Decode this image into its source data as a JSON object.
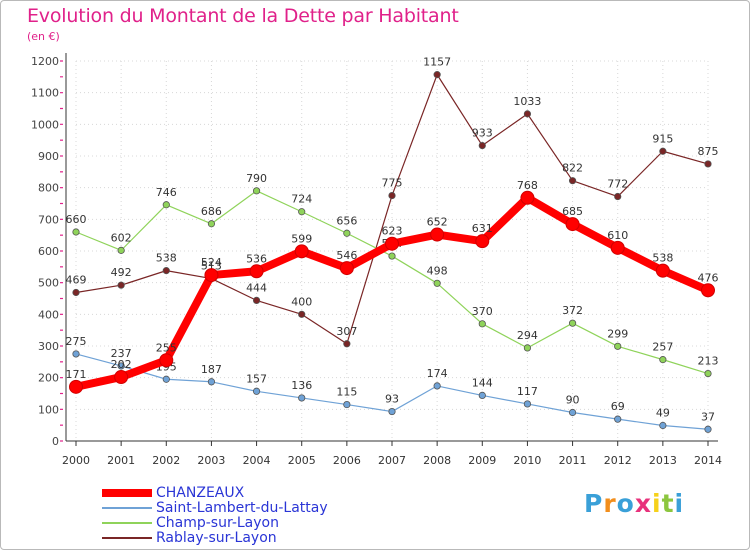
{
  "title": "Evolution du Montant de la Dette par Habitant",
  "subtitle": "(en €)",
  "brand": {
    "letters": [
      "P",
      "r",
      "o",
      "x",
      "i",
      "t",
      "i"
    ],
    "colors": [
      "#3aa0d8",
      "#f28e1c",
      "#3aa0d8",
      "#e8327c",
      "#f6d11b",
      "#8cc63f",
      "#3aa0d8"
    ]
  },
  "chart_data": {
    "type": "line",
    "categories": [
      "2000",
      "2001",
      "2002",
      "2003",
      "2004",
      "2005",
      "2006",
      "2007",
      "2008",
      "2009",
      "2010",
      "2011",
      "2012",
      "2013",
      "2014"
    ],
    "ylim": [
      0,
      1200
    ],
    "yticks": [
      "0",
      "100",
      "200",
      "300",
      "400",
      "500",
      "600",
      "700",
      "800",
      "900",
      "1000",
      "1100",
      "1200"
    ],
    "grid": true,
    "legend_position": "bottom-left",
    "series": [
      {
        "name": "Rablay-sur-Layon",
        "color": "#7a2626",
        "values": [
          469,
          492,
          538,
          513,
          444,
          400,
          307,
          775,
          1157,
          933,
          1033,
          822,
          772,
          915,
          875
        ]
      },
      {
        "name": "Champ-sur-Layon",
        "color": "#8fd35a",
        "values": [
          660,
          602,
          746,
          686,
          790,
          724,
          656,
          584,
          498,
          370,
          294,
          372,
          299,
          257,
          213
        ]
      },
      {
        "name": "Saint-Lambert-du-Lattay",
        "color": "#6fa2d6",
        "values": [
          275,
          237,
          195,
          187,
          157,
          136,
          115,
          93,
          174,
          144,
          117,
          90,
          69,
          49,
          37
        ]
      },
      {
        "name": "CHANZEAUX",
        "color": "#ff0000",
        "values": [
          171,
          202,
          255,
          524,
          536,
          599,
          546,
          623,
          652,
          631,
          768,
          685,
          610,
          538,
          476
        ]
      }
    ],
    "legend": [
      "CHANZEAUX",
      "Saint-Lambert-du-Lattay",
      "Champ-sur-Layon",
      "Rablay-sur-Layon"
    ]
  }
}
